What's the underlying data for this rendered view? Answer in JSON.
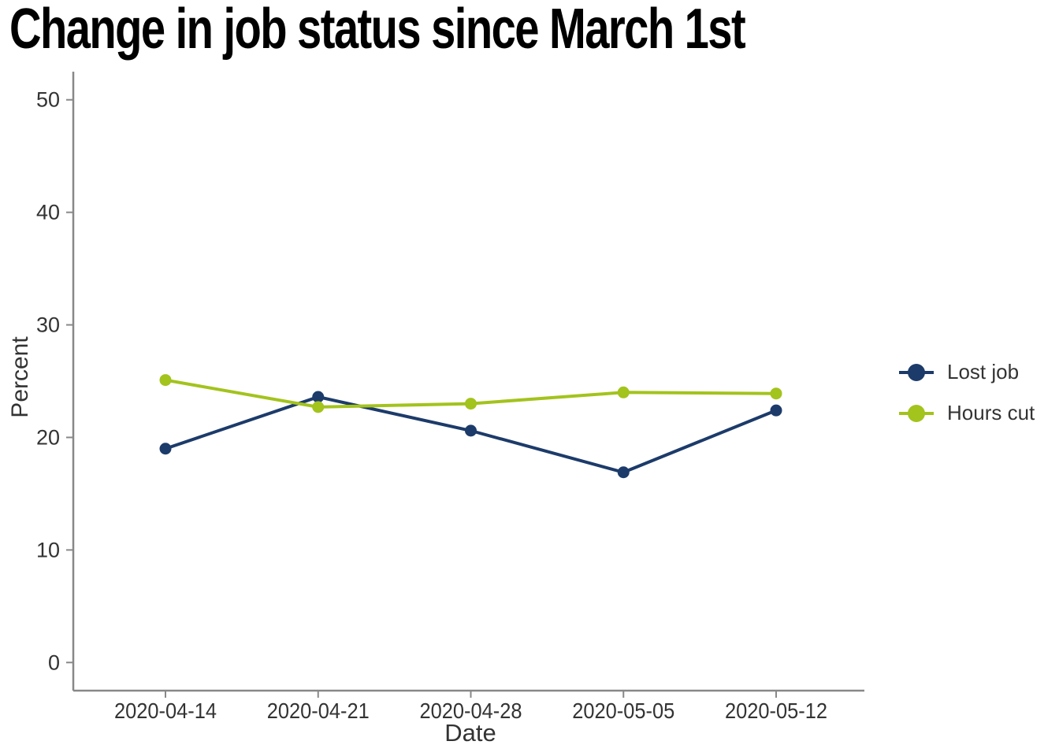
{
  "chart_data": {
    "type": "line",
    "title": "Change in job status since March 1st",
    "xlabel": "Date",
    "ylabel": "Percent",
    "categories": [
      "2020-04-14",
      "2020-04-21",
      "2020-04-28",
      "2020-05-05",
      "2020-05-12"
    ],
    "series": [
      {
        "name": "Lost job",
        "color": "#1c3b6a",
        "values": [
          19.0,
          23.6,
          20.6,
          16.9,
          22.4
        ]
      },
      {
        "name": "Hours cut",
        "color": "#a3c31d",
        "values": [
          25.1,
          22.7,
          23.0,
          24.0,
          23.9
        ]
      }
    ],
    "y_ticks": [
      0,
      10,
      20,
      30,
      40,
      50
    ],
    "ylim": [
      -2.5,
      52.5
    ],
    "grid": false,
    "legend_position": "right",
    "axis_color": "#888888",
    "text_color": "#333333",
    "title_color": "#000000"
  }
}
